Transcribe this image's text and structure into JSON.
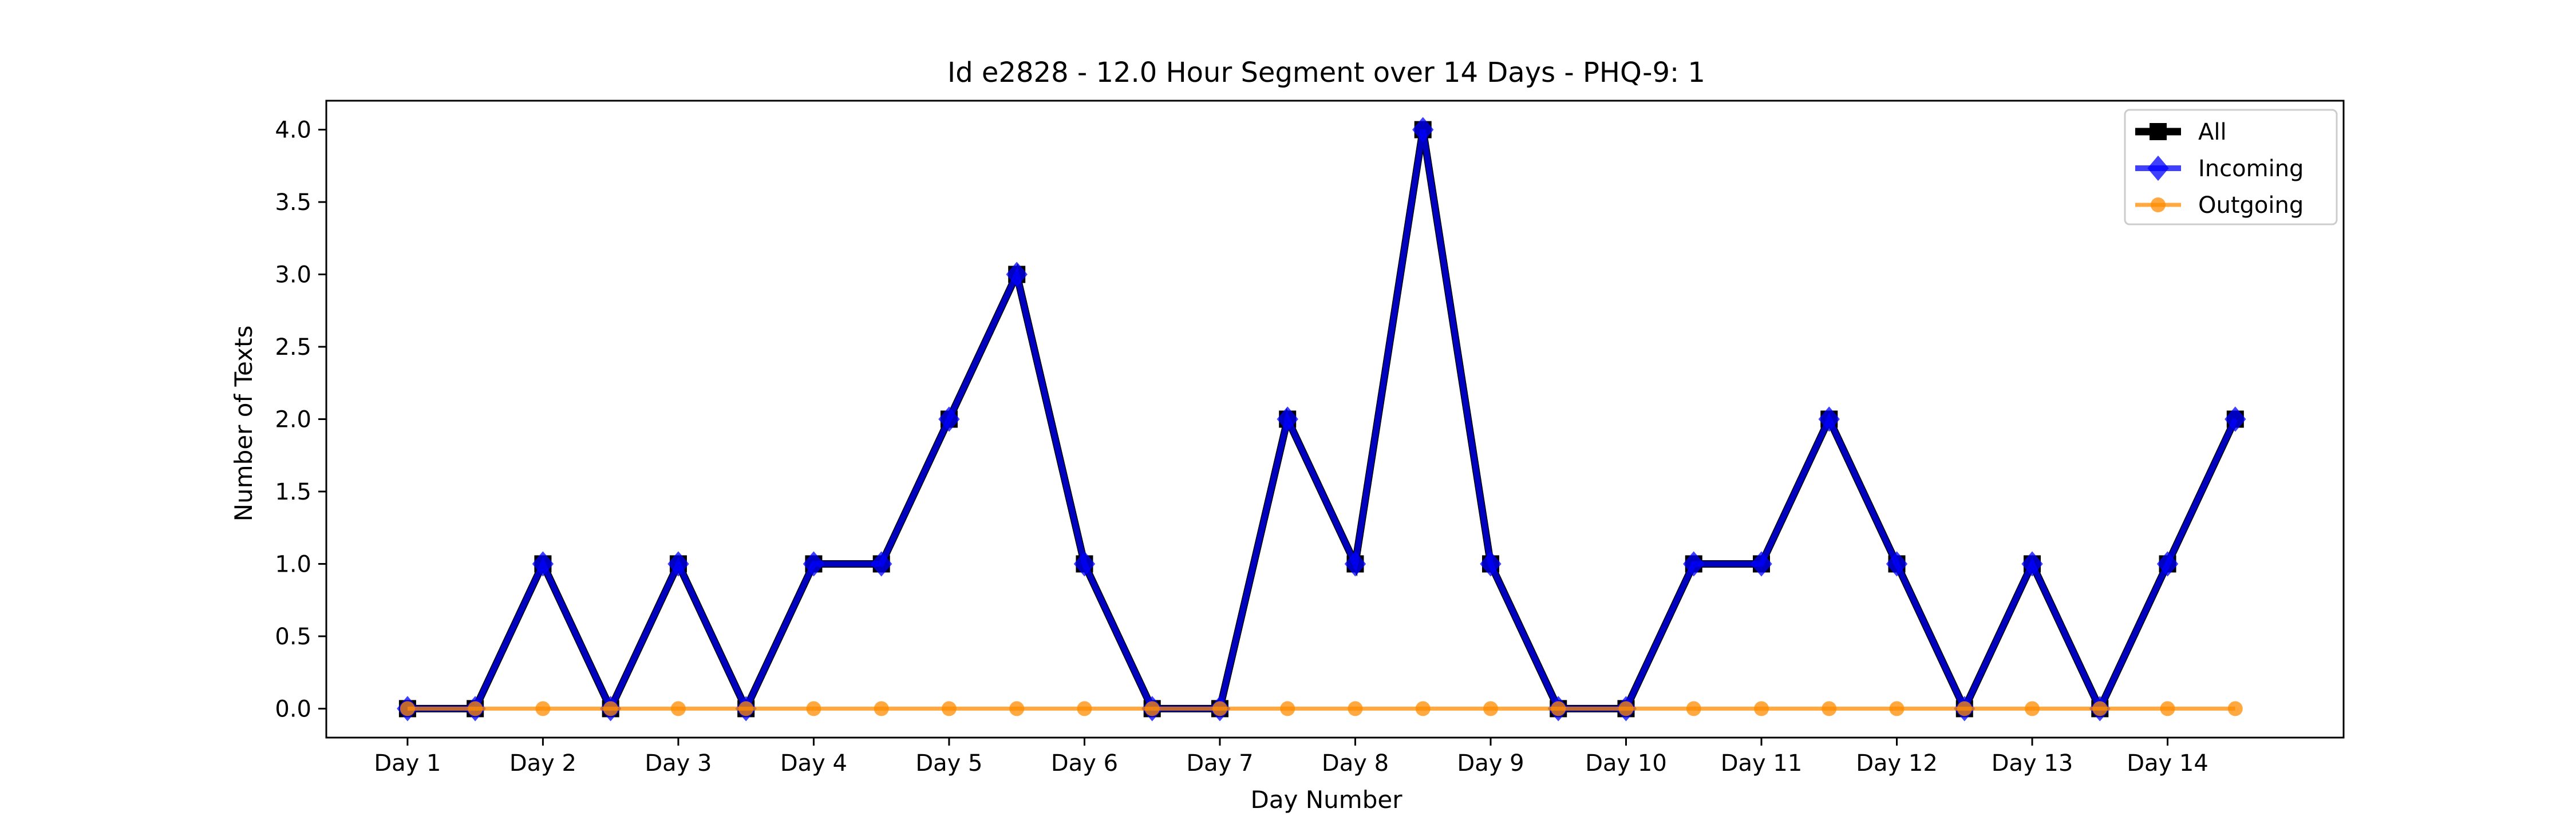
{
  "chart_data": {
    "type": "line",
    "title": "Id e2828 - 12.0 Hour Segment over 14 Days - PHQ-9: 1",
    "xlabel": "Day Number",
    "ylabel": "Number of Texts",
    "x_tick_labels": [
      "Day 1",
      "Day 2",
      "Day 3",
      "Day 4",
      "Day 5",
      "Day 6",
      "Day 7",
      "Day 8",
      "Day 9",
      "Day 10",
      "Day 11",
      "Day 12",
      "Day 13",
      "Day 14"
    ],
    "y_tick_labels": [
      "0.0",
      "0.5",
      "1.0",
      "1.5",
      "2.0",
      "2.5",
      "3.0",
      "3.5",
      "4.0"
    ],
    "y_ticks": [
      0,
      0.5,
      1,
      1.5,
      2,
      2.5,
      3,
      3.5,
      4
    ],
    "xlim": [
      0.4,
      15.3
    ],
    "ylim": [
      -0.2,
      4.2
    ],
    "x": [
      1,
      1.5,
      2,
      2.5,
      3,
      3.5,
      4,
      4.5,
      5,
      5.5,
      6,
      6.5,
      7,
      7.5,
      8,
      8.5,
      9,
      9.5,
      10,
      10.5,
      11,
      11.5,
      12,
      12.5,
      13,
      13.5,
      14,
      14.5
    ],
    "series": [
      {
        "name": "All",
        "color": "#000000",
        "marker": "square",
        "values": [
          0,
          0,
          1,
          0,
          1,
          0,
          1,
          1,
          2,
          3,
          1,
          0,
          0,
          2,
          1,
          4,
          1,
          0,
          0,
          1,
          1,
          2,
          1,
          0,
          1,
          0,
          1,
          2
        ]
      },
      {
        "name": "Incoming",
        "color": "#0000ff",
        "marker": "diamond",
        "values": [
          0,
          0,
          1,
          0,
          1,
          0,
          1,
          1,
          2,
          3,
          1,
          0,
          0,
          2,
          1,
          4,
          1,
          0,
          0,
          1,
          1,
          2,
          1,
          0,
          1,
          0,
          1,
          2
        ]
      },
      {
        "name": "Outgoing",
        "color": "#ff8c00",
        "marker": "circle",
        "values": [
          0,
          0,
          0,
          0,
          0,
          0,
          0,
          0,
          0,
          0,
          0,
          0,
          0,
          0,
          0,
          0,
          0,
          0,
          0,
          0,
          0,
          0,
          0,
          0,
          0,
          0,
          0,
          0
        ]
      }
    ],
    "legend_position": "top-right",
    "grid": false
  }
}
